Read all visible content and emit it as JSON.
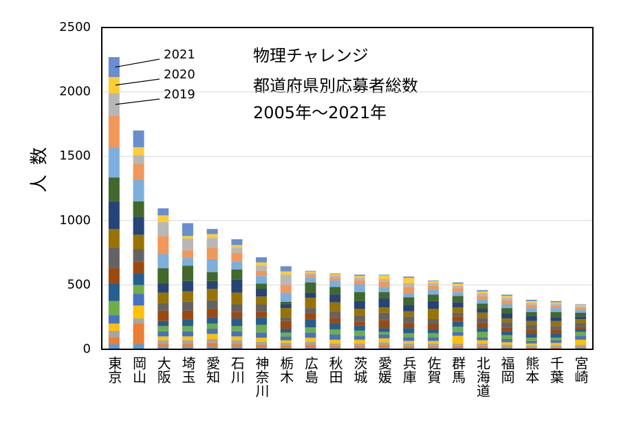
{
  "chart_data": {
    "type": "stacked_bar",
    "title": [
      "物理チャレンジ",
      "都道府県別応募者総数",
      "2005年～2021年"
    ],
    "y_label": "人数",
    "categories": [
      "東京",
      "岡山",
      "大阪",
      "埼玉",
      "愛知",
      "石川",
      "神奈川",
      "栃木",
      "広島",
      "秋田",
      "茨城",
      "愛媛",
      "兵庫",
      "佐賀",
      "群馬",
      "北海道",
      "福岡",
      "熊本",
      "千葉",
      "宮崎"
    ],
    "ylim": [
      0,
      2500
    ],
    "yticks": [
      0,
      500,
      1000,
      1500,
      2000,
      2500
    ],
    "grid": true,
    "series": [
      {
        "color": "#5B9BD5",
        "values": [
          40,
          40,
          20,
          20,
          20,
          20,
          15,
          10,
          15,
          10,
          10,
          15,
          10,
          10,
          10,
          10,
          10,
          5,
          5,
          10
        ]
      },
      {
        "color": "#ED7D31",
        "values": [
          55,
          160,
          20,
          20,
          30,
          20,
          20,
          20,
          20,
          15,
          15,
          20,
          15,
          15,
          15,
          15,
          10,
          10,
          10,
          10
        ]
      },
      {
        "color": "#A5A5A5",
        "values": [
          50,
          40,
          30,
          30,
          30,
          30,
          25,
          20,
          25,
          20,
          20,
          20,
          20,
          20,
          20,
          20,
          15,
          15,
          15,
          15
        ]
      },
      {
        "color": "#FFC000",
        "values": [
          55,
          100,
          30,
          30,
          40,
          30,
          30,
          20,
          30,
          30,
          30,
          30,
          20,
          20,
          60,
          25,
          20,
          15,
          20,
          40
        ]
      },
      {
        "color": "#4472C4",
        "values": [
          65,
          90,
          40,
          40,
          40,
          40,
          40,
          30,
          40,
          40,
          30,
          30,
          30,
          30,
          30,
          25,
          25,
          20,
          20,
          30
        ]
      },
      {
        "color": "#70AD47",
        "values": [
          110,
          70,
          40,
          40,
          40,
          40,
          60,
          30,
          40,
          40,
          40,
          20,
          30,
          30,
          40,
          40,
          30,
          25,
          20,
          30
        ]
      },
      {
        "color": "#255E91",
        "values": [
          135,
          90,
          40,
          50,
          50,
          60,
          60,
          30,
          60,
          50,
          40,
          30,
          40,
          30,
          40,
          30,
          30,
          30,
          30,
          20
        ]
      },
      {
        "color": "#9E480E",
        "values": [
          120,
          90,
          80,
          70,
          60,
          50,
          40,
          60,
          50,
          40,
          30,
          60,
          40,
          40,
          40,
          40,
          30,
          30,
          30,
          20
        ]
      },
      {
        "color": "#636363",
        "values": [
          160,
          100,
          60,
          70,
          70,
          60,
          60,
          30,
          40,
          50,
          50,
          60,
          50,
          40,
          30,
          40,
          40,
          40,
          30,
          30
        ]
      },
      {
        "color": "#997300",
        "values": [
          145,
          110,
          80,
          80,
          90,
          90,
          60,
          70,
          80,
          70,
          50,
          40,
          40,
          80,
          40,
          40,
          30,
          30,
          40,
          30
        ]
      },
      {
        "color": "#264478",
        "values": [
          215,
          140,
          70,
          80,
          60,
          100,
          60,
          30,
          40,
          60,
          60,
          70,
          50,
          60,
          40,
          30,
          40,
          40,
          30,
          20
        ]
      },
      {
        "color": "#43682B",
        "values": [
          185,
          120,
          120,
          120,
          70,
          80,
          40,
          20,
          80,
          60,
          70,
          50,
          60,
          50,
          50,
          40,
          40,
          30,
          40,
          30
        ]
      },
      {
        "color": "#7CAFDD",
        "values": [
          230,
          170,
          110,
          60,
          100,
          60,
          60,
          70,
          40,
          50,
          60,
          40,
          30,
          40,
          30,
          30,
          30,
          30,
          30,
          20
        ]
      },
      {
        "color": "#F1975A",
        "values": [
          250,
          120,
          140,
          60,
          90,
          70,
          40,
          60,
          20,
          20,
          30,
          40,
          50,
          30,
          30,
          30,
          30,
          25,
          20,
          20
        ]
      },
      {
        "name": "2019",
        "color": "#B7B7B7",
        "values": [
          175,
          70,
          110,
          90,
          75,
          40,
          40,
          80,
          15,
          20,
          20,
          20,
          30,
          20,
          20,
          20,
          20,
          15,
          15,
          10
        ]
      },
      {
        "name": "2020",
        "color": "#FFCD33",
        "values": [
          125,
          60,
          50,
          20,
          30,
          20,
          25,
          25,
          10,
          10,
          15,
          30,
          40,
          15,
          15,
          15,
          15,
          15,
          10,
          10
        ]
      },
      {
        "name": "2021",
        "color": "#698ED0",
        "values": [
          155,
          130,
          55,
          100,
          40,
          45,
          40,
          40,
          5,
          5,
          10,
          5,
          10,
          5,
          10,
          10,
          10,
          10,
          10,
          5
        ]
      }
    ]
  }
}
